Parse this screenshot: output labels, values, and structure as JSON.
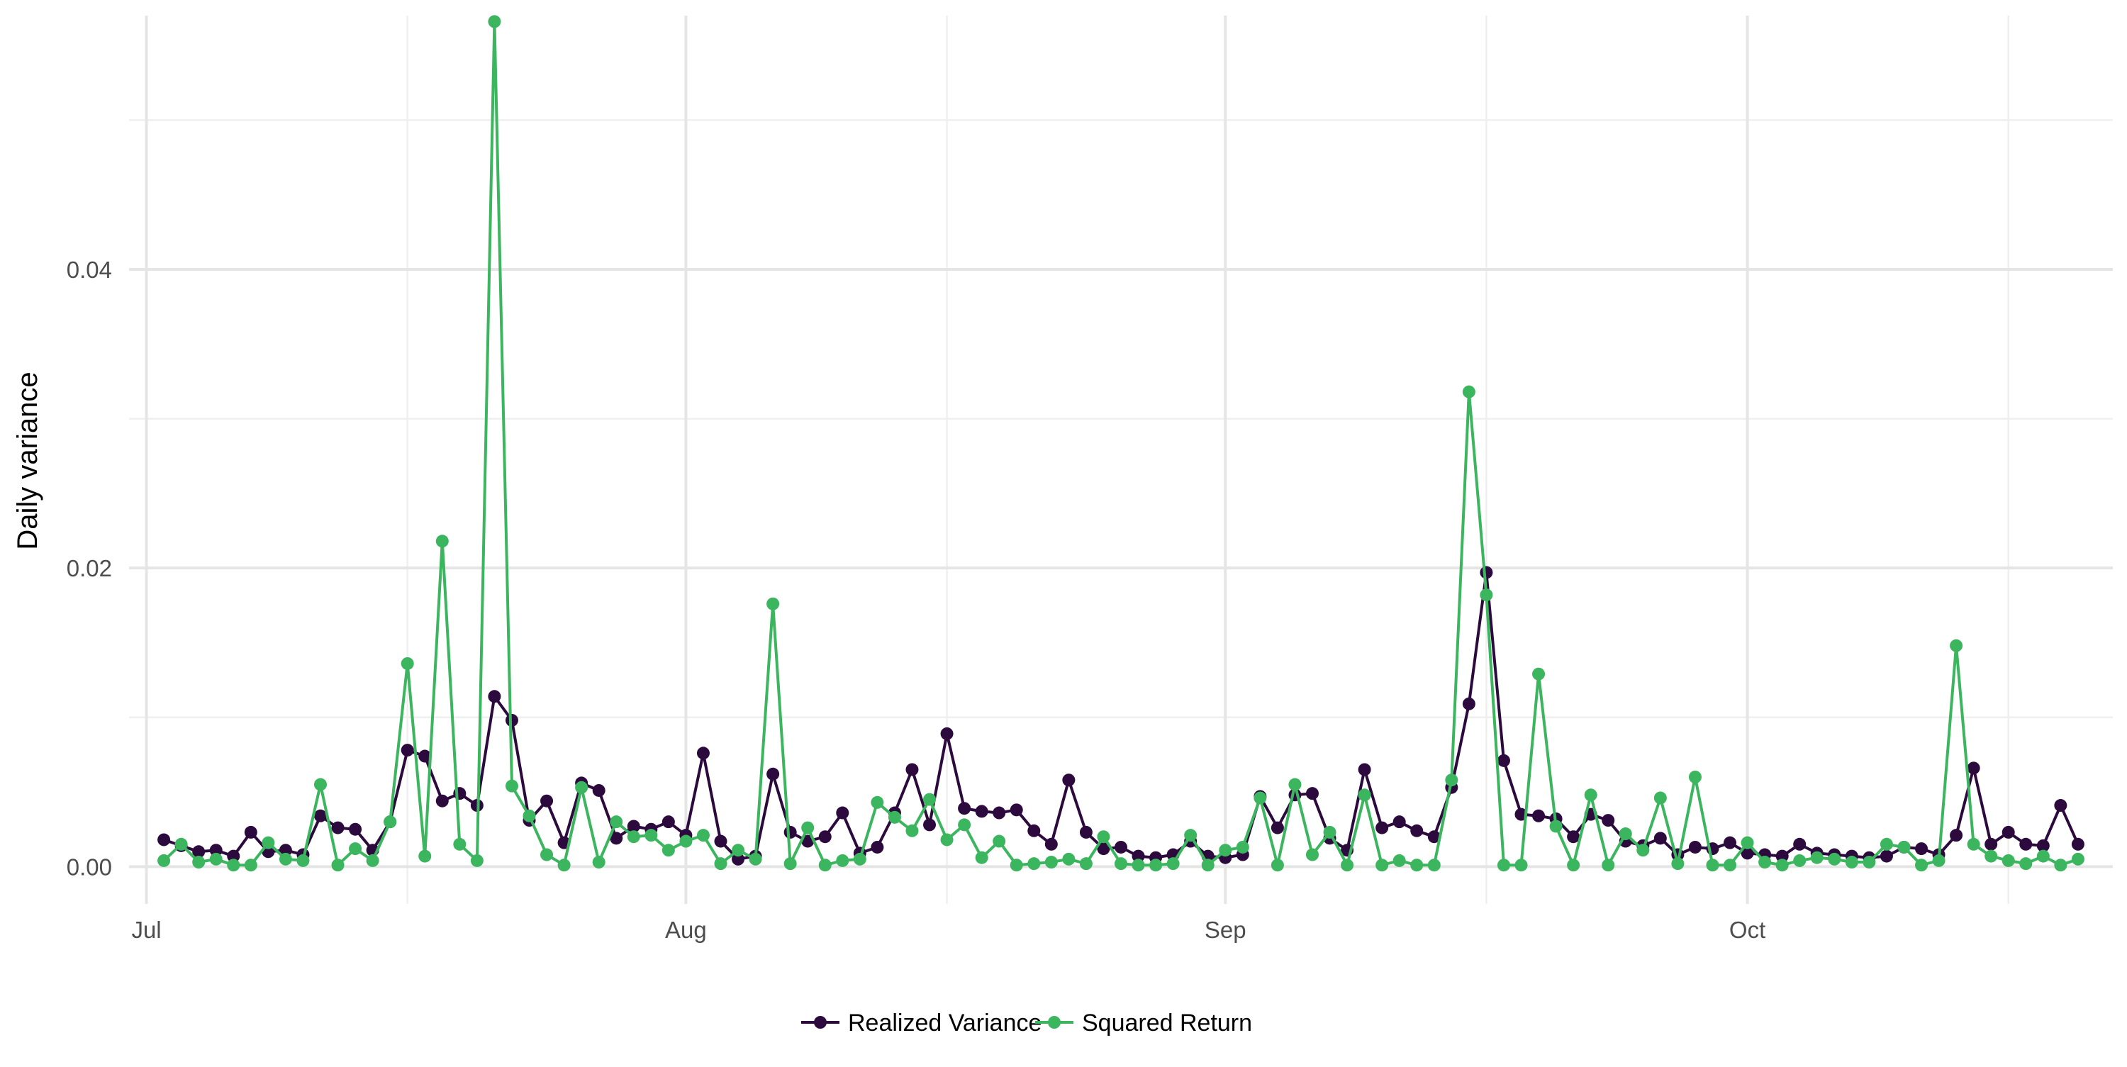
{
  "colors": {
    "realized": "#2d0a3e",
    "squared": "#3bb55e",
    "grid": "#e5e5e5"
  },
  "chart_data": {
    "type": "line",
    "title": "",
    "xlabel": "",
    "ylabel": "Daily variance",
    "x_range": [
      "2025-06-30",
      "2025-10-22"
    ],
    "ylim": [
      -0.0025,
      0.057
    ],
    "y_ticks": [
      0,
      0.02,
      0.04
    ],
    "y_tick_labels": [
      "0.00",
      "0.02",
      "0.04"
    ],
    "x_ticks": [
      "2025-07-01",
      "2025-08-01",
      "2025-09-01",
      "2025-10-01"
    ],
    "x_tick_labels": [
      "Jul",
      "Aug",
      "Sep",
      "Oct"
    ],
    "x_minor_ticks": [
      "2025-07-16",
      "2025-08-16",
      "2025-09-16",
      "2025-10-16"
    ],
    "grid": true,
    "legend_position": "bottom",
    "start_date": "2025-07-02",
    "series": [
      {
        "name": "Realized Variance",
        "color": "#2d0a3e",
        "values": [
          0.0018,
          0.0014,
          0.001,
          0.0011,
          0.0007,
          0.0023,
          0.001,
          0.0011,
          0.0008,
          0.0034,
          0.0026,
          0.0025,
          0.0011,
          0.003,
          0.0078,
          0.0074,
          0.0044,
          0.0049,
          0.0041,
          0.0114,
          0.0098,
          0.0031,
          0.0044,
          0.0016,
          0.0056,
          0.0051,
          0.0019,
          0.0027,
          0.0025,
          0.003,
          0.0021,
          0.0076,
          0.0017,
          0.0005,
          0.0007,
          0.0062,
          0.0023,
          0.0017,
          0.002,
          0.0036,
          0.0009,
          0.0013,
          0.0036,
          0.0065,
          0.0028,
          0.0089,
          0.0039,
          0.0037,
          0.0036,
          0.0038,
          0.0024,
          0.0015,
          0.0058,
          0.0023,
          0.0012,
          0.0013,
          0.0007,
          0.0006,
          0.0008,
          0.0017,
          0.0007,
          0.0006,
          0.0008,
          0.0047,
          0.0026,
          0.0048,
          0.0049,
          0.0019,
          0.0011,
          0.0065,
          0.0026,
          0.003,
          0.0024,
          0.002,
          0.0053,
          0.0109,
          0.0197,
          0.0071,
          0.0035,
          0.0034,
          0.0032,
          0.002,
          0.0035,
          0.0031,
          0.0017,
          0.0014,
          0.0019,
          0.0008,
          0.0013,
          0.0012,
          0.0016,
          0.0009,
          0.0008,
          0.0007,
          0.0015,
          0.0009,
          0.0008,
          0.0007,
          0.0006,
          0.0007,
          0.0013,
          0.0012,
          0.0008,
          0.0021,
          0.0066,
          0.0015,
          0.0023,
          0.0015,
          0.0014,
          0.0041,
          0.0015
        ]
      },
      {
        "name": "Squared Return",
        "color": "#3bb55e",
        "values": [
          0.0004,
          0.0015,
          0.0003,
          0.0005,
          0.0001,
          0.0001,
          0.0016,
          0.0005,
          0.0004,
          0.0055,
          0.0001,
          0.0012,
          0.0004,
          0.003,
          0.0136,
          0.0007,
          0.0218,
          0.0015,
          0.0004,
          0.0566,
          0.0054,
          0.0034,
          0.0008,
          0.0001,
          0.0053,
          0.0003,
          0.003,
          0.002,
          0.0021,
          0.0011,
          0.0017,
          0.0021,
          0.0002,
          0.0011,
          0.0005,
          0.0176,
          0.0002,
          0.0026,
          0.0001,
          0.0004,
          0.0005,
          0.0043,
          0.0033,
          0.0024,
          0.0045,
          0.0018,
          0.0028,
          0.0006,
          0.0017,
          0.0001,
          0.0002,
          0.0003,
          0.0005,
          0.0002,
          0.002,
          0.0002,
          0.0001,
          0.0001,
          0.0002,
          0.0021,
          0.0001,
          0.0011,
          0.0013,
          0.0046,
          0.0001,
          0.0055,
          0.0008,
          0.0023,
          0.0001,
          0.0048,
          0.0001,
          0.0004,
          0.0001,
          0.0001,
          0.0058,
          0.0318,
          0.0182,
          0.0001,
          0.0001,
          0.0129,
          0.0027,
          0.0001,
          0.0048,
          0.0001,
          0.0022,
          0.0011,
          0.0046,
          0.0002,
          0.006,
          0.0001,
          0.0001,
          0.0016,
          0.0003,
          0.0001,
          0.0004,
          0.0006,
          0.0005,
          0.0003,
          0.0003,
          0.0015,
          0.0013,
          0.0001,
          0.0004,
          0.0148,
          0.0015,
          0.0007,
          0.0004,
          0.0002,
          0.0007,
          0.0001,
          0.0005
        ]
      }
    ]
  }
}
